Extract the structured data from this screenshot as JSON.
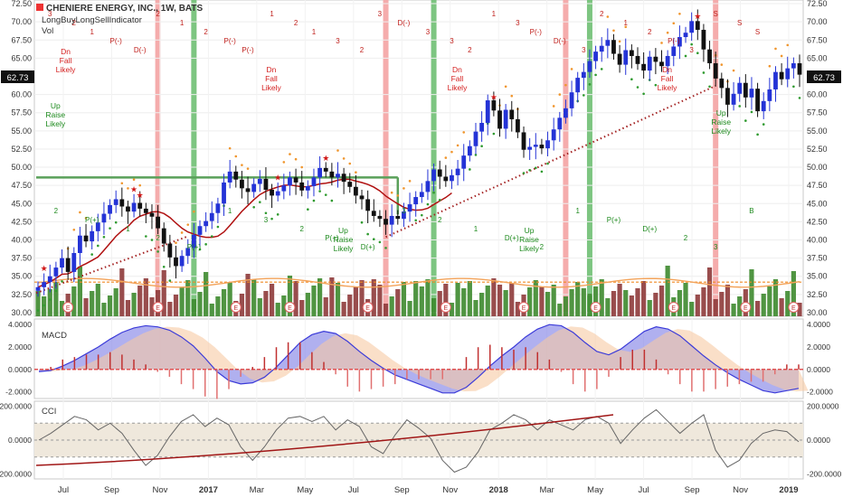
{
  "header": {
    "title": "CHENIERE ENERGY, INC., 1W, BATS",
    "indicator": "LongBuyLongSellIndicator",
    "volume_label": "Vol"
  },
  "panels": {
    "macd_label": "MACD",
    "cci_label": "CCI"
  },
  "colors": {
    "up_candle": "#2433d6",
    "down_candle": "#111111",
    "vol_up": "#3d8a2e",
    "vol_down": "#8e3a3a",
    "red_band": "#f4a3a3",
    "green_band": "#6fbf73",
    "sma": "#b01010",
    "macd_line": "#6b6bdf",
    "signal_fill": "#f7c9a3",
    "cci_line": "#666666",
    "cci_band": "#efe8dc",
    "last_price_bg": "#111111"
  },
  "chart_data": [
    {
      "type": "candlestick",
      "panel": "price",
      "title": "CHENIERE ENERGY, INC., 1W, BATS",
      "x_ticks": [
        "Jul",
        "Sep",
        "Nov",
        "2017",
        "Mar",
        "May",
        "Jul",
        "Sep",
        "Nov",
        "2018",
        "Mar",
        "May",
        "Jul",
        "Sep",
        "Nov",
        "2019"
      ],
      "y_ticks": [
        "72.50",
        "70.00",
        "67.50",
        "65.00",
        "60.00",
        "57.50",
        "55.00",
        "52.50",
        "50.00",
        "47.50",
        "45.00",
        "42.50",
        "40.00",
        "37.50",
        "35.00",
        "32.50",
        "30.00"
      ],
      "ylim": [
        29.5,
        73
      ],
      "last_price": "62.73",
      "close": [
        33.5,
        34.2,
        35.0,
        36.2,
        37.5,
        35.6,
        38.2,
        40.6,
        39.8,
        41.2,
        42.4,
        43.6,
        44.8,
        45.6,
        44.6,
        43.9,
        45.1,
        44.3,
        43.7,
        43.2,
        41.6,
        39.5,
        37.6,
        36.4,
        37.8,
        38.9,
        40.7,
        41.9,
        42.6,
        43.7,
        45.0,
        47.9,
        49.4,
        48.3,
        47.1,
        46.6,
        47.7,
        48.4,
        46.9,
        46.1,
        46.7,
        47.5,
        48.6,
        47.9,
        46.8,
        47.4,
        48.6,
        49.9,
        49.4,
        48.6,
        49.1,
        48.0,
        47.3,
        46.1,
        45.6,
        44.0,
        43.3,
        42.9,
        42.1,
        43.3,
        42.9,
        43.9,
        44.9,
        45.9,
        46.6,
        48.1,
        49.7,
        48.7,
        48.1,
        48.9,
        49.8,
        51.6,
        52.9,
        54.9,
        56.1,
        59.2,
        57.8,
        55.3,
        57.9,
        56.6,
        54.8,
        52.4,
        52.8,
        53.1,
        52.6,
        53.7,
        55.2,
        56.8,
        58.1,
        60.3,
        62.3,
        63.1,
        64.6,
        65.9,
        66.7,
        67.5,
        65.6,
        64.1,
        66.1,
        65.3,
        64.2,
        63.3,
        65.2,
        64.5,
        63.9,
        65.3,
        66.6,
        67.9,
        68.5,
        70.1,
        68.9,
        66.2,
        64.3,
        62.2,
        60.9,
        58.6,
        60.1,
        61.6,
        59.6,
        60.8,
        57.7,
        59.1,
        60.7,
        63.1,
        62.1,
        63.6,
        64.3,
        62.73
      ],
      "volume_range": [
        0,
        100
      ],
      "volume_axis": "none printed"
    },
    {
      "type": "line",
      "panel": "macd",
      "title": "MACD",
      "y_ticks": [
        "4.0000",
        "2.0000",
        "0.0000",
        "-2.0000"
      ],
      "ylim": [
        -2.6,
        4.5
      ],
      "series": [
        {
          "values": [
            -0.2,
            -0.1,
            0.3,
            0.8,
            1.4,
            2.0,
            2.7,
            3.3,
            3.7,
            3.9,
            3.8,
            3.5,
            2.9,
            2.1,
            1.0,
            -0.2,
            -1.0,
            -1.3,
            -1.2,
            -0.7,
            0.2,
            1.3,
            2.4,
            3.1,
            3.4,
            3.2,
            2.5,
            1.6,
            0.8,
            0.1,
            -0.5,
            -0.9,
            -1.3,
            -1.7,
            -2.1,
            -2.1,
            -1.6,
            -0.7,
            0.3,
            1.2,
            2.0,
            2.9,
            3.6,
            4.0,
            3.9,
            3.3,
            2.4,
            1.6,
            1.3,
            1.8,
            2.6,
            3.4,
            3.8,
            3.6,
            3.0,
            2.1,
            1.2,
            0.4,
            -0.3,
            -0.9,
            -1.4,
            -1.9,
            -2.1,
            -1.9,
            -1.7
          ]
        }
      ]
    },
    {
      "type": "line",
      "panel": "cci",
      "title": "CCI",
      "y_ticks": [
        "200.0000",
        "0.0000",
        "-200.0000"
      ],
      "ylim": [
        -230,
        230
      ],
      "series": [
        {
          "values": [
            0,
            40,
            90,
            140,
            120,
            60,
            100,
            40,
            -60,
            -150,
            -90,
            20,
            110,
            150,
            80,
            130,
            90,
            -40,
            -120,
            -40,
            60,
            130,
            140,
            110,
            140,
            60,
            120,
            80,
            -40,
            -80,
            30,
            120,
            70,
            10,
            -120,
            -190,
            -160,
            -70,
            60,
            100,
            150,
            120,
            60,
            120,
            90,
            60,
            120,
            140,
            100,
            -20,
            60,
            130,
            180,
            110,
            40,
            100,
            150,
            -60,
            -160,
            -120,
            -20,
            40,
            60,
            50,
            -10
          ]
        }
      ]
    }
  ],
  "annotations": {
    "sell_signals": [
      {
        "group": "a",
        "labels": [
          "Dn",
          "Fall",
          "Likely"
        ]
      },
      {
        "group": "b",
        "labels": [
          "Dn",
          "Fall",
          "Likely"
        ]
      },
      {
        "group": "c",
        "labels": [
          "Dn",
          "Fall",
          "Likely"
        ]
      },
      {
        "group": "d",
        "labels": [
          "Dn",
          "Fall",
          "Likely"
        ]
      }
    ],
    "buy_signals": [
      {
        "group": "a",
        "labels": [
          "Up",
          "Raise",
          "Likely"
        ]
      },
      {
        "group": "b",
        "labels": [
          "Up",
          "Raise",
          "Likely"
        ]
      },
      {
        "group": "c",
        "labels": [
          "Up",
          "Raise",
          "Likely"
        ]
      },
      {
        "group": "d",
        "labels": [
          "Up",
          "Raise",
          "Likely"
        ]
      }
    ],
    "red_marks": [
      "3",
      "2",
      "1",
      "P(-)",
      "D(-)",
      "2",
      "1",
      "2",
      "P(-)",
      "P(-)",
      "1",
      "2",
      "1",
      "3",
      "2",
      "3",
      "D(-)",
      "3",
      "3",
      "2",
      "1",
      "3",
      "P(-)",
      "D(-)",
      "3",
      "2",
      "1",
      "2",
      "P(-)",
      "3",
      "S",
      "S",
      "S"
    ],
    "green_marks": [
      "2",
      "P(+)",
      "1",
      "2",
      "P(+)",
      "1",
      "3",
      "2",
      "P(+)",
      "D(+)",
      "3",
      "2",
      "1",
      "D(+)",
      "2",
      "1",
      "P(+)",
      "D(+)",
      "2",
      "3",
      "B"
    ],
    "earnings_marker": "E"
  }
}
